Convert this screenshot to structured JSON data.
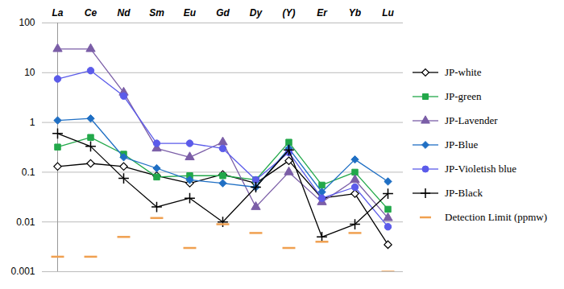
{
  "chart_data": {
    "type": "line",
    "categories": [
      "La",
      "Ce",
      "Nd",
      "Sm",
      "Eu",
      "Gd",
      "Dy",
      "(Y)",
      "Er",
      "Yb",
      "Lu"
    ],
    "log": "y",
    "ylim": [
      0.001,
      100
    ],
    "yticks": [
      0.001,
      0.01,
      0.1,
      1,
      10,
      100
    ],
    "grid": true,
    "legend": "right",
    "series": [
      {
        "name": "JP-white",
        "color": "#000000",
        "marker": "diamond_open",
        "line_style": "solid",
        "values": [
          0.13,
          0.15,
          0.13,
          0.085,
          0.06,
          0.09,
          0.06,
          0.17,
          0.03,
          0.037,
          0.0035
        ]
      },
      {
        "name": "JP-green",
        "color": "#22a84a",
        "marker": "square",
        "line_style": "solid",
        "values": [
          0.32,
          0.5,
          0.23,
          0.08,
          0.085,
          0.085,
          0.07,
          0.4,
          0.055,
          0.1,
          0.018
        ]
      },
      {
        "name": "JP-Lavender",
        "color": "#7b5ea7",
        "marker": "triangle",
        "line_style": "solid",
        "values": [
          30,
          30,
          4,
          0.3,
          0.2,
          0.4,
          0.02,
          0.1,
          0.025,
          0.07,
          0.012
        ]
      },
      {
        "name": "JP-Blue",
        "color": "#1f6fc4",
        "marker": "diamond",
        "line_style": "solid",
        "values": [
          1.1,
          1.2,
          0.2,
          0.12,
          0.07,
          0.06,
          0.05,
          0.3,
          0.04,
          0.18,
          0.065
        ]
      },
      {
        "name": "JP-Violetish blue",
        "color": "#5b5bea",
        "marker": "circle",
        "line_style": "solid",
        "values": [
          7.5,
          11,
          3.4,
          0.38,
          0.38,
          0.3,
          0.07,
          0.25,
          0.03,
          0.05,
          0.008
        ]
      },
      {
        "name": "JP-Black",
        "color": "#000000",
        "marker": "plus",
        "line_style": "solid",
        "values": [
          0.6,
          0.33,
          0.075,
          0.02,
          0.03,
          0.01,
          0.05,
          0.28,
          0.005,
          0.009,
          0.037
        ]
      },
      {
        "name": "Detection Limit (ppmw)",
        "color": "#f0a050",
        "marker": "dash",
        "line_style": "none",
        "values": [
          0.002,
          0.002,
          0.005,
          0.012,
          0.003,
          0.009,
          0.006,
          0.003,
          0.004,
          0.006,
          0.001
        ]
      }
    ]
  }
}
